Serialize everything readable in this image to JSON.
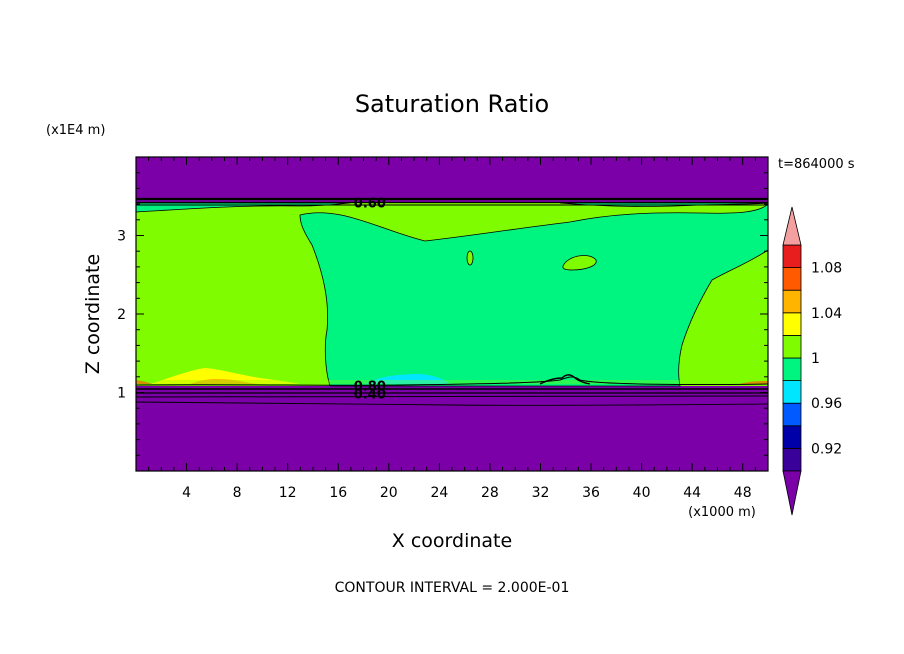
{
  "chart_data": {
    "type": "contour",
    "title": "Saturation Ratio",
    "xlabel": "X coordinate",
    "ylabel": "Z coordinate",
    "x_scale_label": "(x1000 m)",
    "y_scale_label": "(x1E4 m)",
    "time_label": "t=864000 s",
    "footer": "CONTOUR INTERVAL = 2.000E-01",
    "xlim": [
      0,
      50
    ],
    "ylim": [
      0,
      4
    ],
    "x_ticks": [
      4,
      8,
      12,
      16,
      20,
      24,
      28,
      32,
      36,
      40,
      44,
      48
    ],
    "y_ticks": [
      1,
      2,
      3
    ],
    "contour_labels": [
      {
        "text": "0.60",
        "x": 18.5,
        "y": 3.42
      },
      {
        "text": "0.80",
        "x": 18.5,
        "y": 1.09
      },
      {
        "text": "0.40",
        "x": 18.5,
        "y": 0.99
      }
    ],
    "regions": [
      {
        "name": "dry upper layer",
        "level": "<0.92",
        "color": "#7b00a8"
      },
      {
        "name": "left side near-saturated",
        "level": "1-1.02",
        "color": "#7ffc00"
      },
      {
        "name": "central core",
        "level": "0.98-1",
        "color": "#00f580"
      },
      {
        "name": "surface moist patch",
        "level": "1.02-1.04",
        "color": "#ffff00"
      },
      {
        "name": "dry lower layer",
        "level": "<0.92",
        "color": "#7b00a8"
      }
    ],
    "colorbar": {
      "levels": [
        {
          "label": "",
          "color": "#7b00a8"
        },
        {
          "label": "0.92",
          "color": "#3a009a"
        },
        {
          "label": "",
          "color": "#0000a8"
        },
        {
          "label": "0.96",
          "color": "#005aff"
        },
        {
          "label": "",
          "color": "#00e6ff"
        },
        {
          "label": "1",
          "color": "#00f580"
        },
        {
          "label": "",
          "color": "#7ffc00"
        },
        {
          "label": "1.04",
          "color": "#ffff00"
        },
        {
          "label": "",
          "color": "#ffb400"
        },
        {
          "label": "1.08",
          "color": "#ff5a00"
        },
        {
          "label": "",
          "color": "#e81e1e"
        },
        {
          "label": "",
          "color": "#f5a0a0"
        }
      ]
    }
  }
}
